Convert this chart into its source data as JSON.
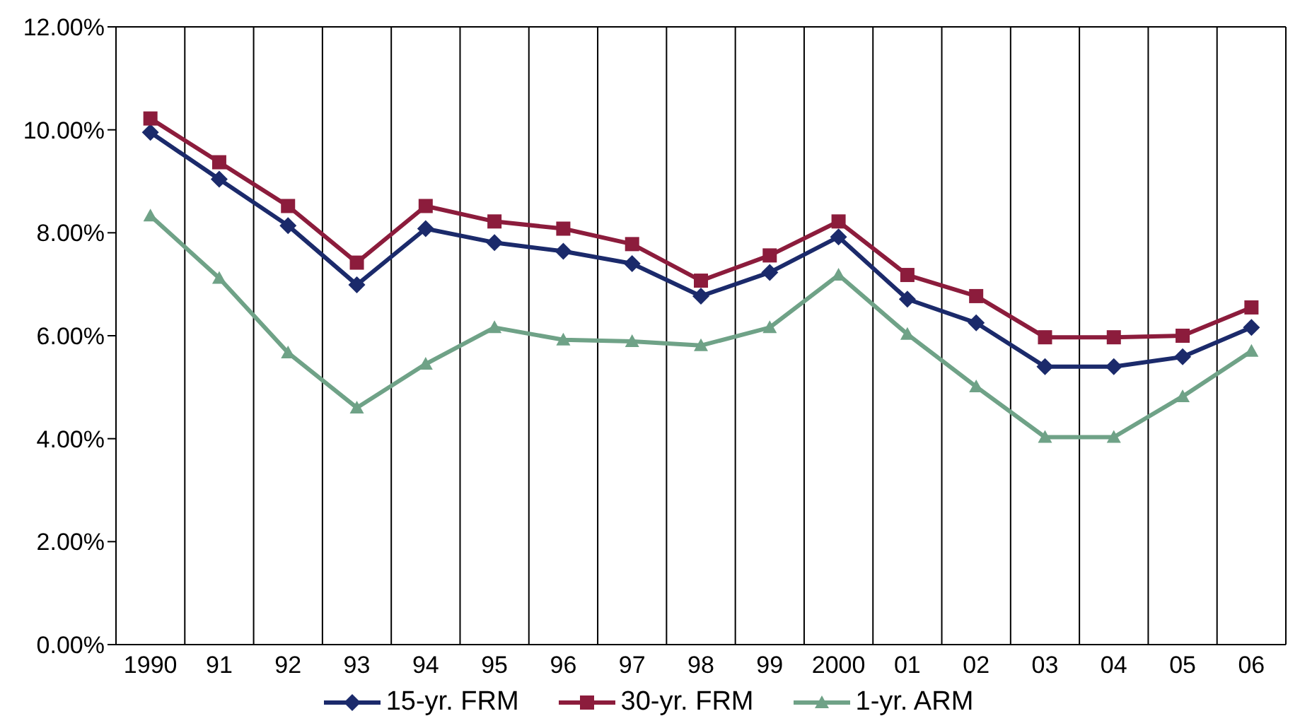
{
  "chart_data": {
    "type": "line",
    "categories": [
      "1990",
      "91",
      "92",
      "93",
      "94",
      "95",
      "96",
      "97",
      "98",
      "99",
      "2000",
      "01",
      "02",
      "03",
      "04",
      "05",
      "06"
    ],
    "series": [
      {
        "name": "15-yr. FRM",
        "color": "#1b2a6b",
        "marker": "diamond",
        "values": [
          9.95,
          9.04,
          8.14,
          6.99,
          8.08,
          7.81,
          7.64,
          7.4,
          6.77,
          7.23,
          7.92,
          6.71,
          6.25,
          5.4,
          5.4,
          5.59,
          6.16
        ]
      },
      {
        "name": "30-yr. FRM",
        "color": "#8c1c3c",
        "marker": "square",
        "values": [
          10.22,
          9.37,
          8.52,
          7.42,
          8.52,
          8.22,
          8.08,
          7.78,
          7.07,
          7.56,
          8.22,
          7.18,
          6.77,
          5.97,
          5.97,
          6.0,
          6.55
        ]
      },
      {
        "name": "1-yr. ARM",
        "color": "#6fa287",
        "marker": "triangle",
        "values": [
          8.33,
          7.12,
          5.67,
          4.6,
          5.45,
          6.16,
          5.92,
          5.89,
          5.81,
          6.16,
          7.18,
          6.03,
          5.01,
          4.03,
          4.03,
          4.82,
          5.7
        ]
      }
    ],
    "ylim": [
      0,
      12
    ],
    "yticks": [
      {
        "value": 0,
        "label": "0.00%"
      },
      {
        "value": 2,
        "label": "2.00%"
      },
      {
        "value": 4,
        "label": "4.00%"
      },
      {
        "value": 6,
        "label": "6.00%"
      },
      {
        "value": 8,
        "label": "8.00%"
      },
      {
        "value": 10,
        "label": "10.00%"
      },
      {
        "value": 12,
        "label": "12.00%"
      }
    ],
    "grid": "x",
    "legend": "bottom",
    "line_style": "solid"
  }
}
